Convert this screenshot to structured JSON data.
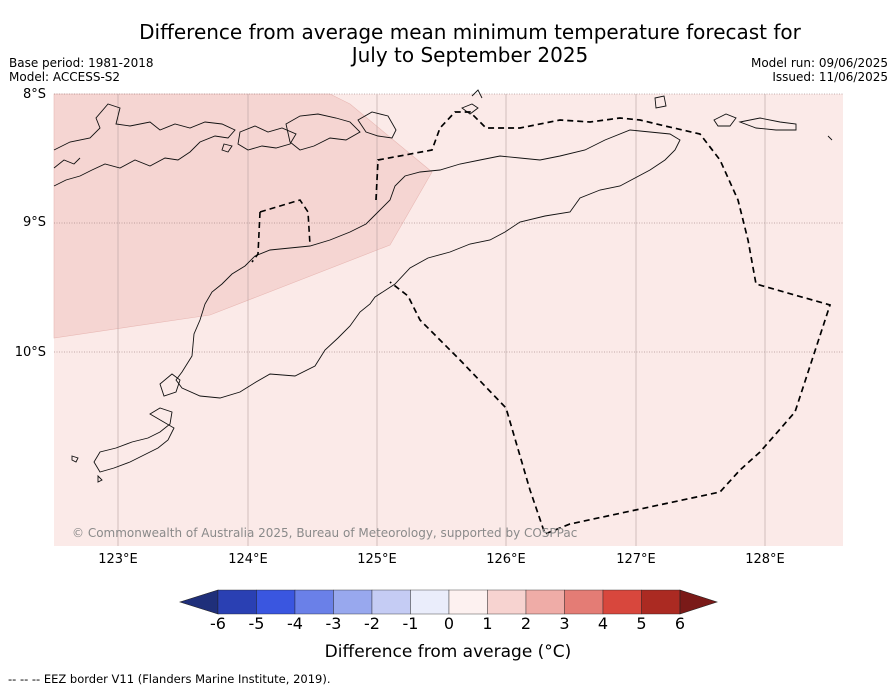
{
  "title": {
    "line1": "Difference from average mean minimum temperature forecast for",
    "line2": "July to September 2025"
  },
  "meta_left": [
    "Base period: 1981-2018",
    "Model: ACCESS-S2"
  ],
  "meta_right": [
    "Model run: 09/06/2025",
    "Issued: 11/06/2025"
  ],
  "latitude_labels": [
    "8°S",
    "9°S",
    "10°S"
  ],
  "longitude_labels": [
    "123°E",
    "124°E",
    "125°E",
    "126°E",
    "127°E",
    "128°E"
  ],
  "copyright": "© Commonwealth of Australia 2025, Bureau of Meteorology, supported by COSPPac",
  "map_fill_colors": {
    "category_0_to_1": "#fbeae8",
    "category_1_to_2": "#f5d5d2"
  },
  "colorbar": {
    "label": "Difference from average (°C)",
    "ticks": [
      "-6",
      "-5",
      "-4",
      "-3",
      "-2",
      "-1",
      "0",
      "1",
      "2",
      "3",
      "4",
      "5",
      "6"
    ],
    "colors": [
      "#1f2f7a",
      "#2a40b3",
      "#3a56e0",
      "#6a80e8",
      "#98a8ee",
      "#c5ccf4",
      "#eaedfb",
      "#fdf1f0",
      "#f7d3d0",
      "#efaca7",
      "#e47c75",
      "#d8473d",
      "#ab2a22",
      "#7a1a18"
    ]
  },
  "footnote": "--  --  -- EEZ border V11 (Flanders Marine Institute, 2019)."
}
